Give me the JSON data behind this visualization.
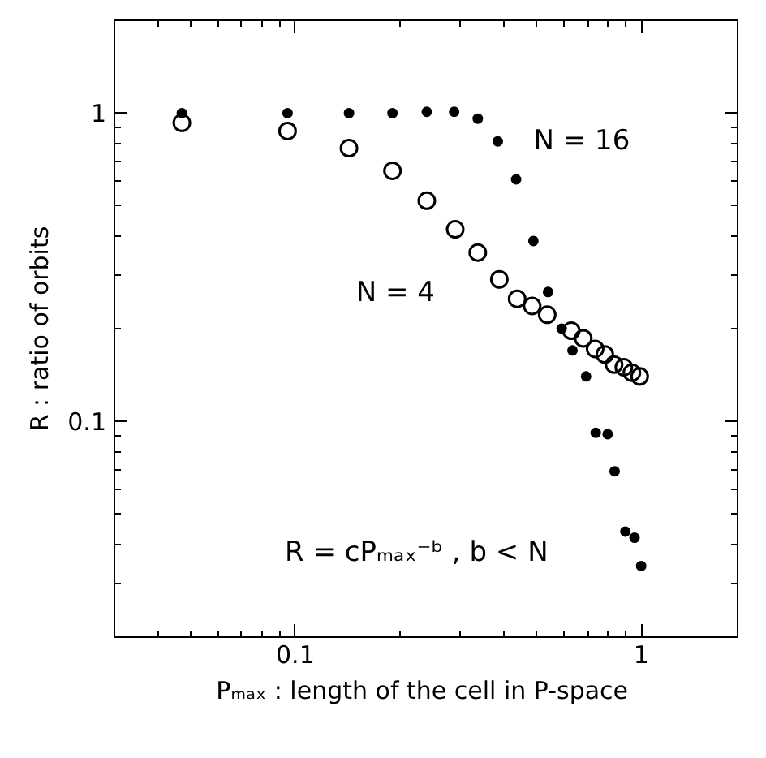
{
  "chart_data": {
    "type": "scatter",
    "xlabel": "Pₘₐₓ : length of the cell  in P-space",
    "ylabel": "R : ratio of orbits",
    "log": "xy",
    "xlim": [
      0.03,
      1.9
    ],
    "ylim": [
      0.02,
      2
    ],
    "xticks": [
      0.1,
      1
    ],
    "yticks": [
      0.1,
      1
    ],
    "grid": false,
    "marker": "circle",
    "series": [
      {
        "name": "N = 4",
        "color": "#000000",
        "x": [
          0.047,
          0.095,
          0.143,
          0.191,
          0.24,
          0.29,
          0.337,
          0.389,
          0.438,
          0.484,
          0.535,
          0.628,
          0.68,
          0.736,
          0.785,
          0.835,
          0.891,
          0.94,
          0.99
        ],
        "values": [
          0.93,
          0.875,
          0.77,
          0.65,
          0.52,
          0.42,
          0.353,
          0.289,
          0.25,
          0.237,
          0.222,
          0.197,
          0.186,
          0.172,
          0.165,
          0.153,
          0.15,
          0.144,
          0.14
        ]
      },
      {
        "name": "N = 16",
        "color": "#000000",
        "x": [
          0.047,
          0.095,
          0.143,
          0.191,
          0.24,
          0.288,
          0.337,
          0.385,
          0.435,
          0.488,
          0.538,
          0.589,
          0.633,
          0.693,
          0.739,
          0.8,
          0.838,
          0.9,
          0.957,
          1.0
        ],
        "values": [
          1.0,
          1.0,
          1.0,
          1.0,
          1.01,
          1.01,
          0.96,
          0.81,
          0.61,
          0.385,
          0.263,
          0.2,
          0.17,
          0.14,
          0.092,
          0.091,
          0.069,
          0.044,
          0.042,
          0.034
        ]
      }
    ],
    "annotations": [
      "R = cPₘₐₓ⁻ᵇ , b < N"
    ]
  }
}
